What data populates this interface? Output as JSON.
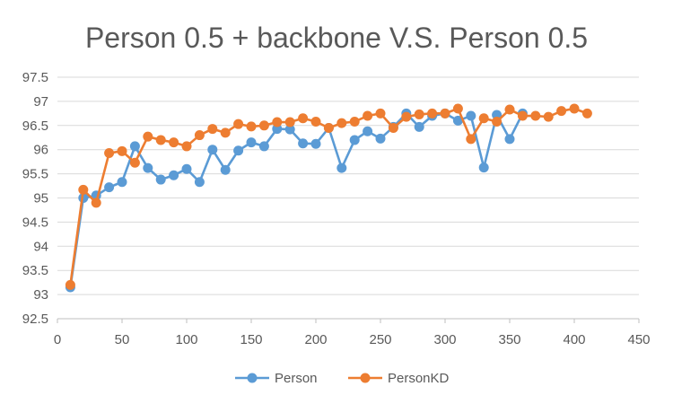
{
  "chart_data": {
    "type": "line",
    "title": "Person 0.5 + backbone V.S. Person 0.5",
    "xlabel": "",
    "ylabel": "",
    "xlim": [
      0,
      450
    ],
    "ylim": [
      92.5,
      97.5
    ],
    "x_ticks": [
      0,
      50,
      100,
      150,
      200,
      250,
      300,
      350,
      400,
      450
    ],
    "y_ticks": [
      92.5,
      93,
      93.5,
      94,
      94.5,
      95,
      95.5,
      96,
      96.5,
      97,
      97.5
    ],
    "x_tick_labels": [
      "0",
      "50",
      "100",
      "150",
      "200",
      "250",
      "300",
      "350",
      "400",
      "450"
    ],
    "y_tick_labels": [
      "92.5",
      "93",
      "93.5",
      "94",
      "94.5",
      "95",
      "95.5",
      "96",
      "96.5",
      "97",
      "97.5"
    ],
    "grid": "horizontal",
    "legend_position": "bottom",
    "series": [
      {
        "name": "Person",
        "color": "#5b9bd5",
        "x": [
          10,
          20,
          30,
          40,
          50,
          60,
          70,
          80,
          90,
          100,
          110,
          120,
          130,
          140,
          150,
          160,
          170,
          180,
          190,
          200,
          210,
          220,
          230,
          240,
          250,
          260,
          270,
          280,
          290,
          300,
          310,
          320,
          330,
          340,
          350,
          360
        ],
        "y": [
          93.15,
          95.0,
          95.05,
          95.22,
          95.33,
          96.07,
          95.62,
          95.38,
          95.47,
          95.6,
          95.33,
          96.0,
          95.58,
          95.98,
          96.15,
          96.07,
          96.43,
          96.42,
          96.13,
          96.12,
          96.45,
          95.62,
          96.2,
          96.38,
          96.23,
          96.47,
          96.75,
          96.47,
          96.7,
          96.75,
          96.6,
          96.7,
          95.63,
          96.72,
          96.22,
          96.75
        ]
      },
      {
        "name": "PersonKD",
        "color": "#ed7d31",
        "x": [
          10,
          20,
          30,
          40,
          50,
          60,
          70,
          80,
          90,
          100,
          110,
          120,
          130,
          140,
          150,
          160,
          170,
          180,
          190,
          200,
          210,
          220,
          230,
          240,
          250,
          260,
          270,
          280,
          290,
          300,
          310,
          320,
          330,
          340,
          350,
          360,
          370,
          380,
          390,
          400,
          410
        ],
        "y": [
          93.2,
          95.17,
          94.9,
          95.93,
          95.97,
          95.73,
          96.27,
          96.2,
          96.15,
          96.07,
          96.3,
          96.43,
          96.35,
          96.53,
          96.48,
          96.5,
          96.57,
          96.57,
          96.65,
          96.58,
          96.45,
          96.55,
          96.58,
          96.7,
          96.75,
          96.45,
          96.68,
          96.73,
          96.75,
          96.75,
          96.85,
          96.22,
          96.65,
          96.58,
          96.83,
          96.7,
          96.7,
          96.68,
          96.8,
          96.85,
          96.75
        ]
      }
    ]
  }
}
